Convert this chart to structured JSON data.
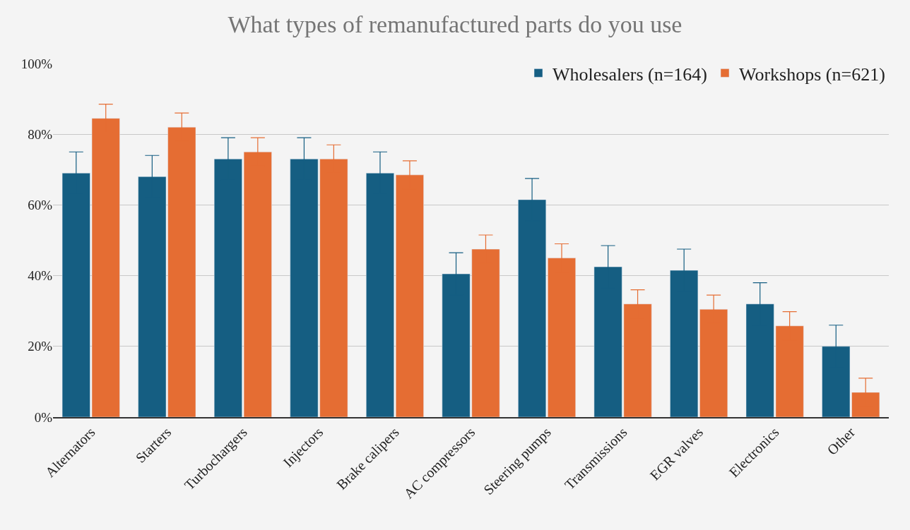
{
  "chart_data": {
    "type": "bar",
    "title": "What types of remanufactured parts do you use",
    "categories": [
      "Alternators",
      "Starters",
      "Turbochargers",
      "Injectors",
      "Brake calipers",
      "AC compressors",
      "Steering pumps",
      "Transmissions",
      "EGR valves",
      "Electronics",
      "Other"
    ],
    "series": [
      {
        "name": "Wholesalers (n=164)",
        "color": "#155e82",
        "values": [
          69,
          68,
          73,
          73,
          69,
          40.5,
          61.5,
          42.5,
          41.5,
          32,
          20
        ],
        "errors": [
          6,
          6,
          6,
          6,
          6,
          6,
          6,
          6,
          6,
          6,
          6
        ]
      },
      {
        "name": "Workshops (n=621)",
        "color": "#e56d33",
        "values": [
          84.5,
          82,
          75,
          73,
          68.5,
          47.5,
          45,
          32,
          30.5,
          25.8,
          7
        ],
        "errors": [
          4,
          4,
          4,
          4,
          4,
          4,
          4,
          4,
          4,
          4,
          4
        ]
      }
    ],
    "ylim": [
      0,
      100
    ],
    "yticks": [
      {
        "value": 0,
        "label": "0%"
      },
      {
        "value": 20,
        "label": "20%"
      },
      {
        "value": 40,
        "label": "40%"
      },
      {
        "value": 60,
        "label": "60%"
      },
      {
        "value": 80,
        "label": "80%"
      },
      {
        "value": 100,
        "label": "100%"
      }
    ],
    "grid": "y",
    "legend": "top right"
  }
}
